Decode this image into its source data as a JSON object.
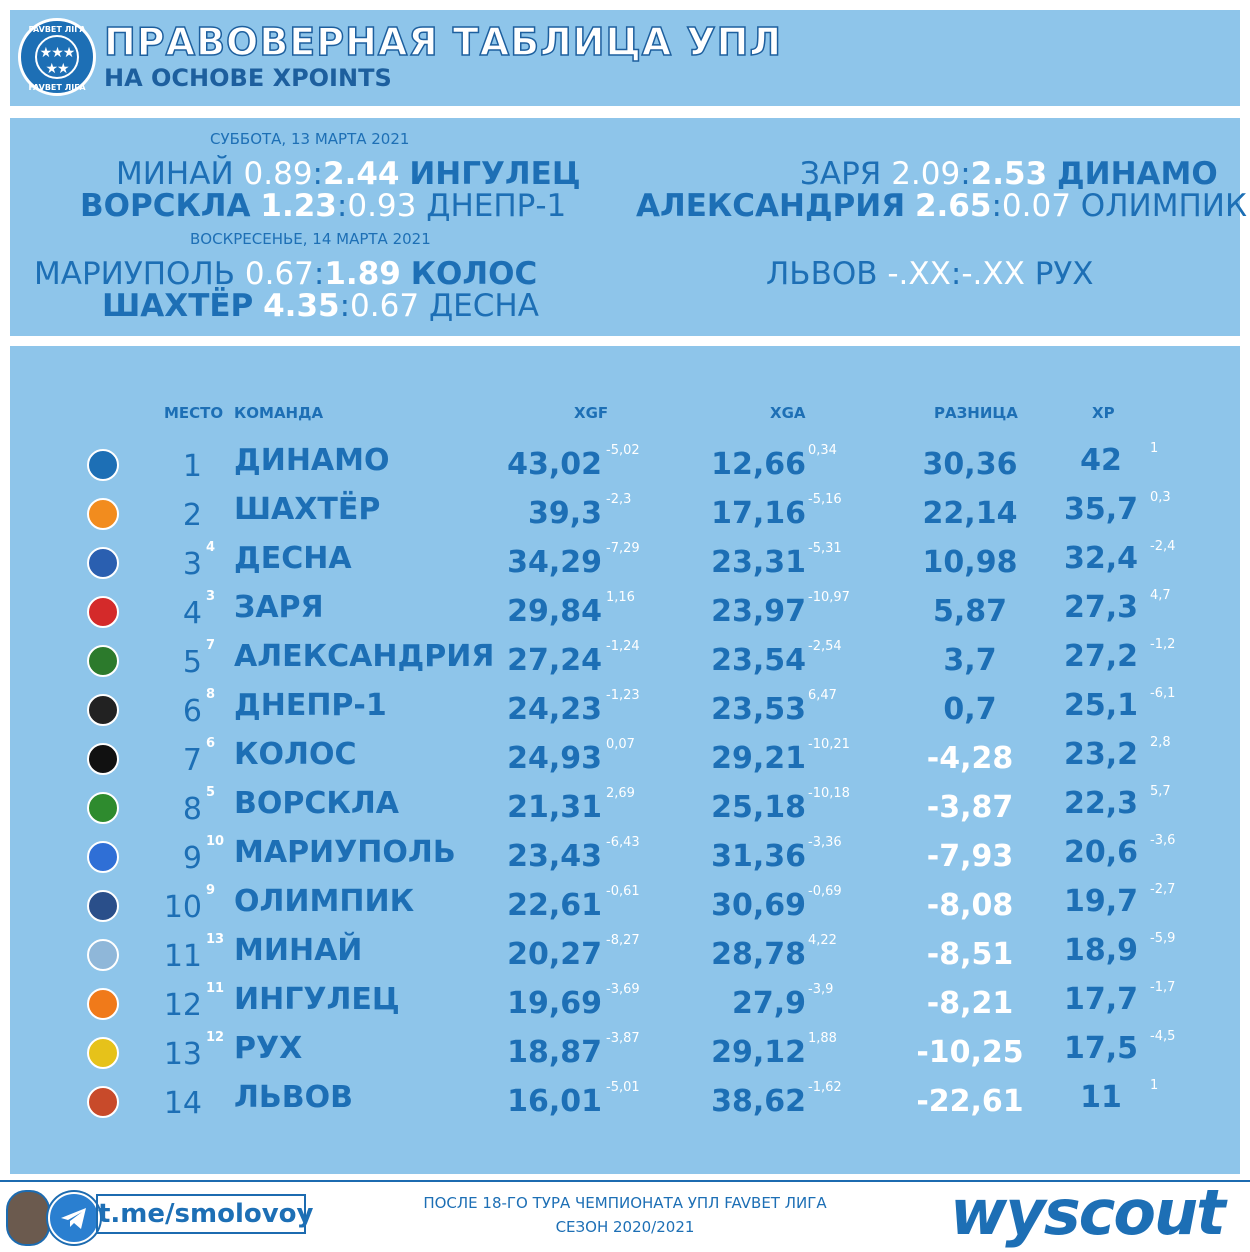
{
  "header": {
    "title": "ПРАВОВЕРНАЯ ТАБЛИЦА УПЛ",
    "subtitle": "НА ОСНОВЕ XPOINTS",
    "logo_top_text": "FAVBET ЛІГА",
    "logo_bottom_text": "FAVBET ЛІГА"
  },
  "matches": {
    "date1": "СУББОТА, 13 МАРТА 2021",
    "date2": "ВОСКРЕСЕНЬЕ, 14 МАРТА 2021",
    "list": [
      {
        "home": "МИНАЙ",
        "hs": "0.89",
        "as": "2.44",
        "away": "ИНГУЛЕЦ"
      },
      {
        "home": "ВОРСКЛА",
        "hs": "1.23",
        "as": "0.93",
        "away": "ДНЕПР-1"
      },
      {
        "home": "ЗАРЯ",
        "hs": "2.09",
        "as": "2.53",
        "away": "ДИНАМО"
      },
      {
        "home": "АЛЕКСАНДРИЯ",
        "hs": "2.65",
        "as": "0.07",
        "away": "ОЛИМПИК"
      },
      {
        "home": "МАРИУПОЛЬ",
        "hs": "0.67",
        "as": "1.89",
        "away": "КОЛОС"
      },
      {
        "home": "ШАХТЁР",
        "hs": "4.35",
        "as": "0.67",
        "away": "ДЕСНА"
      },
      {
        "home": "ЛЬВОВ",
        "hs": "-.XX",
        "as": "-.XX",
        "away": "РУХ"
      }
    ]
  },
  "table": {
    "headers": {
      "place": "МЕСТО",
      "team": "КОМАНДА",
      "xgf": "XGF",
      "xga": "XGA",
      "diff": "РАЗНИЦА",
      "xp": "XP"
    },
    "rows": [
      {
        "place": "1",
        "prev": "",
        "team": "ДИНАМО",
        "xgf": "43,02",
        "xgf_d": "-5,02",
        "xga": "12,66",
        "xga_d": "0,34",
        "diff": "30,36",
        "xp": "42",
        "xp_d": "1"
      },
      {
        "place": "2",
        "prev": "",
        "team": "ШАХТЁР",
        "xgf": "39,3",
        "xgf_d": "-2,3",
        "xga": "17,16",
        "xga_d": "-5,16",
        "diff": "22,14",
        "xp": "35,7",
        "xp_d": "0,3"
      },
      {
        "place": "3",
        "prev": "4",
        "team": "ДЕСНА",
        "xgf": "34,29",
        "xgf_d": "-7,29",
        "xga": "23,31",
        "xga_d": "-5,31",
        "diff": "10,98",
        "xp": "32,4",
        "xp_d": "-2,4"
      },
      {
        "place": "4",
        "prev": "3",
        "team": "ЗАРЯ",
        "xgf": "29,84",
        "xgf_d": "1,16",
        "xga": "23,97",
        "xga_d": "-10,97",
        "diff": "5,87",
        "xp": "27,3",
        "xp_d": "4,7"
      },
      {
        "place": "5",
        "prev": "7",
        "team": "АЛЕКСАНДРИЯ",
        "xgf": "27,24",
        "xgf_d": "-1,24",
        "xga": "23,54",
        "xga_d": "-2,54",
        "diff": "3,7",
        "xp": "27,2",
        "xp_d": "-1,2"
      },
      {
        "place": "6",
        "prev": "8",
        "team": "ДНЕПР-1",
        "xgf": "24,23",
        "xgf_d": "-1,23",
        "xga": "23,53",
        "xga_d": "6,47",
        "diff": "0,7",
        "xp": "25,1",
        "xp_d": "-6,1"
      },
      {
        "place": "7",
        "prev": "6",
        "team": "КОЛОС",
        "xgf": "24,93",
        "xgf_d": "0,07",
        "xga": "29,21",
        "xga_d": "-10,21",
        "diff": "-4,28",
        "xp": "23,2",
        "xp_d": "2,8"
      },
      {
        "place": "8",
        "prev": "5",
        "team": "ВОРСКЛА",
        "xgf": "21,31",
        "xgf_d": "2,69",
        "xga": "25,18",
        "xga_d": "-10,18",
        "diff": "-3,87",
        "xp": "22,3",
        "xp_d": "5,7"
      },
      {
        "place": "9",
        "prev": "10",
        "team": "МАРИУПОЛЬ",
        "xgf": "23,43",
        "xgf_d": "-6,43",
        "xga": "31,36",
        "xga_d": "-3,36",
        "diff": "-7,93",
        "xp": "20,6",
        "xp_d": "-3,6"
      },
      {
        "place": "10",
        "prev": "9",
        "team": "ОЛИМПИК",
        "xgf": "22,61",
        "xgf_d": "-0,61",
        "xga": "30,69",
        "xga_d": "-0,69",
        "diff": "-8,08",
        "xp": "19,7",
        "xp_d": "-2,7"
      },
      {
        "place": "11",
        "prev": "13",
        "team": "МИНАЙ",
        "xgf": "20,27",
        "xgf_d": "-8,27",
        "xga": "28,78",
        "xga_d": "4,22",
        "diff": "-8,51",
        "xp": "18,9",
        "xp_d": "-5,9"
      },
      {
        "place": "12",
        "prev": "11",
        "team": "ИНГУЛЕЦ",
        "xgf": "19,69",
        "xgf_d": "-3,69",
        "xga": "27,9",
        "xga_d": "-3,9",
        "diff": "-8,21",
        "xp": "17,7",
        "xp_d": "-1,7"
      },
      {
        "place": "13",
        "prev": "12",
        "team": "РУХ",
        "xgf": "18,87",
        "xgf_d": "-3,87",
        "xga": "29,12",
        "xga_d": "1,88",
        "diff": "-10,25",
        "xp": "17,5",
        "xp_d": "-4,5"
      },
      {
        "place": "14",
        "prev": "",
        "team": "ЛЬВОВ",
        "xgf": "16,01",
        "xgf_d": "-5,01",
        "xga": "38,62",
        "xga_d": "-1,62",
        "diff": "-22,61",
        "xp": "11",
        "xp_d": "1"
      }
    ]
  },
  "footer": {
    "telegram": "t.me/smolovoy",
    "line1": "ПОСЛЕ 18-ГО ТУРА ЧЕМПИОНАТА УПЛ FAVBET ЛИГА",
    "line2": "СЕЗОН 2020/2021",
    "brand": "wyscout"
  },
  "colors": {
    "panel": "#8ec5ea",
    "accent": "#1d6fb5",
    "white": "#ffffff"
  }
}
